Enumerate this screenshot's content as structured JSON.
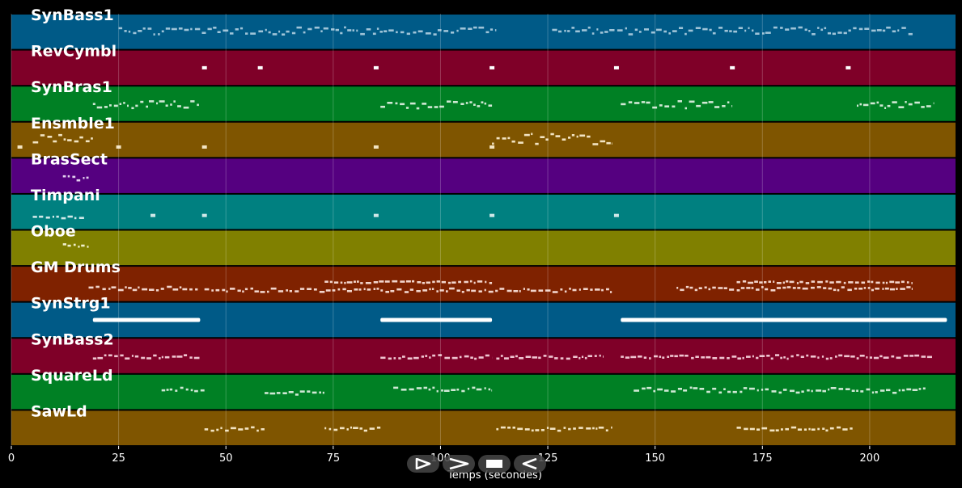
{
  "window": {
    "background": "#000000"
  },
  "controls": [
    {
      "id": "play",
      "icon": "play-icon"
    },
    {
      "id": "fast-forward",
      "icon": "fast-forward-icon"
    },
    {
      "id": "stop",
      "icon": "stop-icon"
    },
    {
      "id": "rewind",
      "icon": "rewind-icon"
    }
  ],
  "chart_data": {
    "type": "piano-roll",
    "xlabel": "Temps (secondes)",
    "xlim": [
      0,
      220
    ],
    "xticks": [
      0,
      25,
      50,
      75,
      100,
      125,
      150,
      175,
      200
    ],
    "grid": true,
    "tracks": [
      {
        "name": "SynBass1",
        "color": "#005a87",
        "note_color": "#9fc4d8",
        "segments": [
          [
            25,
            113,
            0.35,
            0.55
          ],
          [
            126,
            210,
            0.35,
            0.55
          ]
        ]
      },
      {
        "name": "RevCymbl",
        "color": "#7f0028",
        "note_color": "#ffffff",
        "hits": [
          45,
          58,
          85,
          112,
          141,
          168,
          195
        ],
        "hit_y": 0.5
      },
      {
        "name": "SynBras1",
        "color": "#008024",
        "note_color": "#cfe8d4",
        "segments": [
          [
            19,
            44,
            0.4,
            0.6
          ],
          [
            86,
            112,
            0.4,
            0.6
          ],
          [
            142,
            168,
            0.4,
            0.6
          ],
          [
            197,
            215,
            0.4,
            0.6
          ]
        ]
      },
      {
        "name": "Ensmble1",
        "color": "#7f5500",
        "note_color": "#f3e4c2",
        "segments": [
          [
            5,
            19,
            0.3,
            0.55
          ],
          [
            112,
            140,
            0.3,
            0.6
          ]
        ],
        "hits": [
          2,
          25,
          45,
          85,
          112
        ],
        "hit_y": 0.7
      },
      {
        "name": "BrasSect",
        "color": "#550080",
        "note_color": "#e2cfee",
        "segments": [
          [
            12,
            18,
            0.45,
            0.6
          ]
        ]
      },
      {
        "name": "Timpani",
        "color": "#008080",
        "note_color": "#cfe8e8",
        "segments": [
          [
            5,
            17,
            0.6,
            0.65
          ]
        ],
        "hits": [
          33,
          45,
          85,
          112,
          141
        ],
        "hit_y": 0.6
      },
      {
        "name": "Oboe",
        "color": "#808000",
        "note_color": "#f0f0cc",
        "segments": [
          [
            12,
            18,
            0.35,
            0.45
          ]
        ]
      },
      {
        "name": "GM Drums",
        "color": "#7f2200",
        "note_color": "#f2d5cc",
        "segments": [
          [
            18,
            44,
            0.55,
            0.65
          ],
          [
            45,
            140,
            0.6,
            0.7
          ],
          [
            73,
            112,
            0.4,
            0.45
          ],
          [
            155,
            210,
            0.55,
            0.65
          ],
          [
            169,
            210,
            0.4,
            0.45
          ]
        ]
      },
      {
        "name": "SynStrg1",
        "color": "#005a87",
        "note_color": "#ffffff",
        "bars": [
          [
            19,
            44
          ],
          [
            86,
            112
          ],
          [
            142,
            218
          ]
        ],
        "bar_y": 0.5
      },
      {
        "name": "SynBass2",
        "color": "#7f0028",
        "note_color": "#efc4d0",
        "segments": [
          [
            19,
            44,
            0.45,
            0.55
          ],
          [
            86,
            112,
            0.45,
            0.55
          ],
          [
            113,
            138,
            0.45,
            0.55
          ],
          [
            142,
            215,
            0.45,
            0.55
          ]
        ]
      },
      {
        "name": "SquareLd",
        "color": "#008024",
        "note_color": "#cfe8d4",
        "segments": [
          [
            35,
            45,
            0.35,
            0.45
          ],
          [
            59,
            73,
            0.45,
            0.55
          ],
          [
            89,
            112,
            0.35,
            0.45
          ],
          [
            145,
            213,
            0.35,
            0.5
          ]
        ]
      },
      {
        "name": "SawLd",
        "color": "#7f5500",
        "note_color": "#f3e4c2",
        "segments": [
          [
            45,
            59,
            0.45,
            0.55
          ],
          [
            73,
            86,
            0.45,
            0.55
          ],
          [
            113,
            140,
            0.45,
            0.55
          ],
          [
            169,
            196,
            0.45,
            0.55
          ]
        ]
      }
    ]
  }
}
